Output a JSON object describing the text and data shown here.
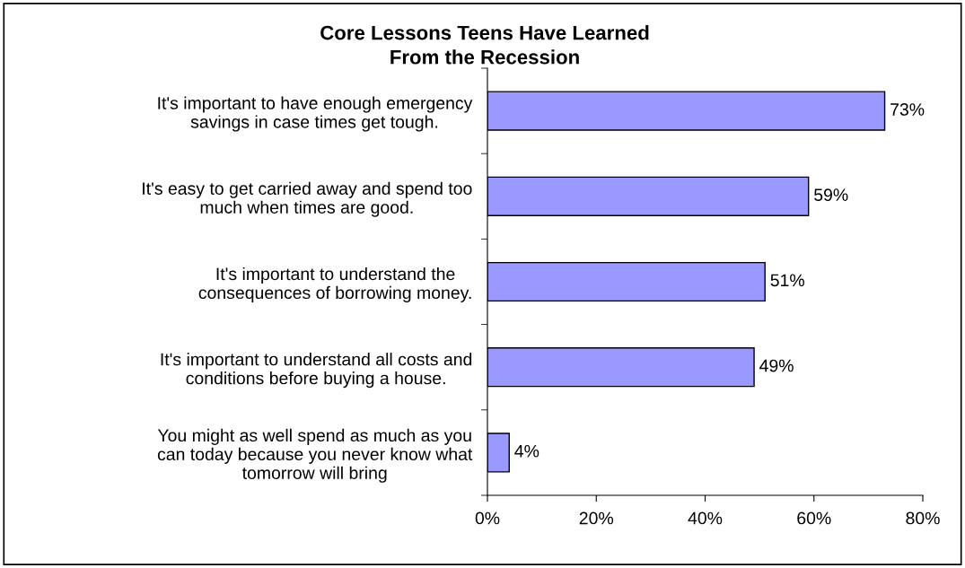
{
  "chart_data": {
    "type": "bar",
    "orientation": "horizontal",
    "title": "Core Lessons Teens Have Learned\nFrom the Recession",
    "categories": [
      "It's important to have enough emergency\nsavings in case times get tough.",
      "It's easy to get carried away and spend too\nmuch when times are good.",
      "It's important to understand the\nconsequences of borrowing money.",
      "It's important to understand all costs and\nconditions before buying a house.",
      "You might as well spend as much as you\ncan today because you never know what\ntomorrow will bring"
    ],
    "values": [
      73,
      59,
      51,
      49,
      4
    ],
    "value_labels": [
      "73%",
      "59%",
      "51%",
      "49%",
      "4%"
    ],
    "color": "#9999ff",
    "xlim": [
      0,
      80
    ],
    "xticks": [
      {
        "value": 0,
        "label": "0%"
      },
      {
        "value": 20,
        "label": "20%"
      },
      {
        "value": 40,
        "label": "40%"
      },
      {
        "value": 60,
        "label": "60%"
      },
      {
        "value": 80,
        "label": "80%"
      }
    ],
    "grid": false,
    "legend": false
  }
}
